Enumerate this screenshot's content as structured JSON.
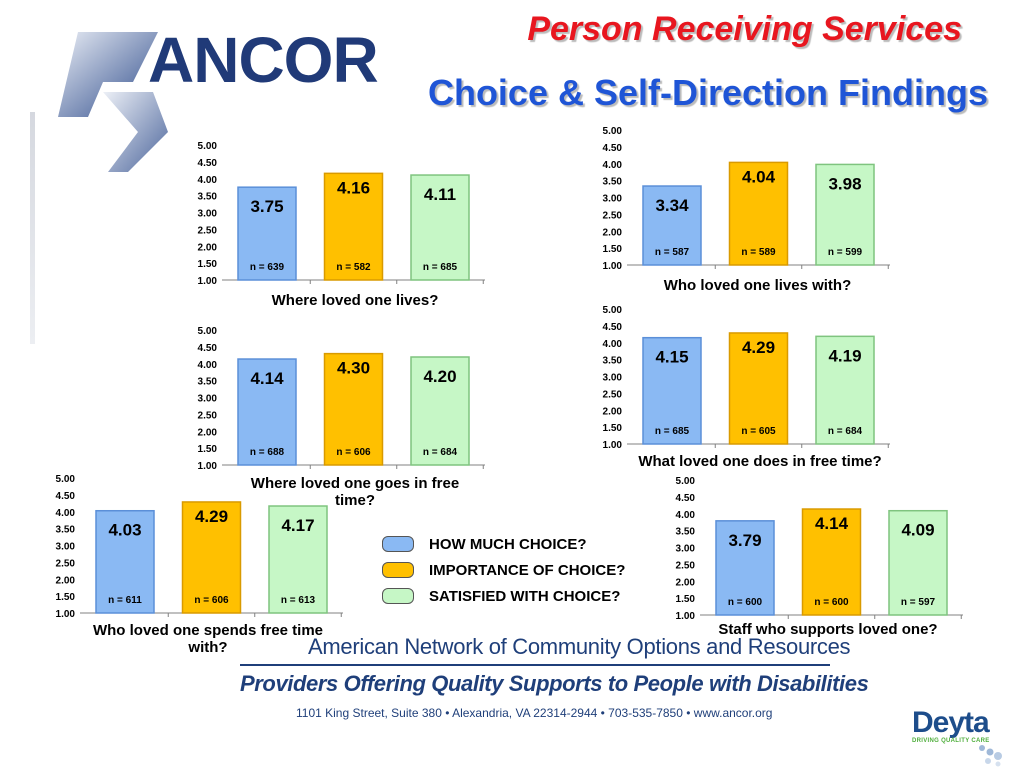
{
  "header": {
    "logo_text": "ANCOR",
    "title": "Person Receiving Services",
    "subtitle": "Choice & Self-Direction Findings"
  },
  "colors": {
    "how_much": "#8ab9f3",
    "importance": "#ffc000",
    "satisfied": "#c6f7c6",
    "title_red": "#e8161f",
    "title_blue": "#1f55d6",
    "brand_navy": "#1f3f7a"
  },
  "legend": {
    "items": [
      {
        "label": "HOW MUCH CHOICE?",
        "color": "#8ab9f3"
      },
      {
        "label": "IMPORTANCE OF CHOICE?",
        "color": "#ffc000"
      },
      {
        "label": "SATISFIED WITH CHOICE?",
        "color": "#c6f7c6"
      }
    ]
  },
  "chart_data": [
    {
      "type": "bar",
      "title": "Where loved one lives?",
      "categories": [
        "HOW MUCH CHOICE?",
        "IMPORTANCE OF CHOICE?",
        "SATISFIED WITH CHOICE?"
      ],
      "values": [
        3.75,
        4.16,
        4.11
      ],
      "value_labels": [
        "3.75",
        "4.16",
        "4.11"
      ],
      "n_labels": [
        "n = 639",
        "n = 582",
        "n = 685"
      ],
      "yticks": [
        "1.00",
        "1.50",
        "2.00",
        "2.50",
        "3.00",
        "3.50",
        "4.00",
        "4.50",
        "5.00"
      ],
      "ylim": [
        1,
        5
      ]
    },
    {
      "type": "bar",
      "title": "Who loved one lives with?",
      "categories": [
        "HOW MUCH CHOICE?",
        "IMPORTANCE OF CHOICE?",
        "SATISFIED WITH CHOICE?"
      ],
      "values": [
        3.34,
        4.04,
        3.98
      ],
      "value_labels": [
        "3.34",
        "4.04",
        "3.98"
      ],
      "n_labels": [
        "n = 587",
        "n = 589",
        "n = 599"
      ],
      "yticks": [
        "1.00",
        "1.50",
        "2.00",
        "2.50",
        "3.00",
        "3.50",
        "4.00",
        "4.50",
        "5.00"
      ],
      "ylim": [
        1,
        5
      ]
    },
    {
      "type": "bar",
      "title": "Where loved one goes in free time?",
      "categories": [
        "HOW MUCH CHOICE?",
        "IMPORTANCE OF CHOICE?",
        "SATISFIED WITH CHOICE?"
      ],
      "values": [
        4.14,
        4.3,
        4.2
      ],
      "value_labels": [
        "4.14",
        "4.30",
        "4.20"
      ],
      "n_labels": [
        "n = 688",
        "n = 606",
        "n = 684"
      ],
      "yticks": [
        "1.00",
        "1.50",
        "2.00",
        "2.50",
        "3.00",
        "3.50",
        "4.00",
        "4.50",
        "5.00"
      ],
      "ylim": [
        1,
        5
      ]
    },
    {
      "type": "bar",
      "title": "What loved one does in free time?",
      "categories": [
        "HOW MUCH CHOICE?",
        "IMPORTANCE OF CHOICE?",
        "SATISFIED WITH CHOICE?"
      ],
      "values": [
        4.15,
        4.29,
        4.19
      ],
      "value_labels": [
        "4.15",
        "4.29",
        "4.19"
      ],
      "n_labels": [
        "n = 685",
        "n = 605",
        "n = 684"
      ],
      "yticks": [
        "1.00",
        "1.50",
        "2.00",
        "2.50",
        "3.00",
        "3.50",
        "4.00",
        "4.50",
        "5.00"
      ],
      "ylim": [
        1,
        5
      ]
    },
    {
      "type": "bar",
      "title": "Who loved one spends free time with?",
      "categories": [
        "HOW MUCH CHOICE?",
        "IMPORTANCE OF CHOICE?",
        "SATISFIED WITH CHOICE?"
      ],
      "values": [
        4.03,
        4.29,
        4.17
      ],
      "value_labels": [
        "4.03",
        "4.29",
        "4.17"
      ],
      "n_labels": [
        "n = 611",
        "n = 606",
        "n = 613"
      ],
      "yticks": [
        "1.00",
        "1.50",
        "2.00",
        "2.50",
        "3.00",
        "3.50",
        "4.00",
        "4.50",
        "5.00"
      ],
      "ylim": [
        1,
        5
      ]
    },
    {
      "type": "bar",
      "title": "Staff who supports loved one?",
      "categories": [
        "HOW MUCH CHOICE?",
        "IMPORTANCE OF CHOICE?",
        "SATISFIED WITH CHOICE?"
      ],
      "values": [
        3.79,
        4.14,
        4.09
      ],
      "value_labels": [
        "3.79",
        "4.14",
        "4.09"
      ],
      "n_labels": [
        "n = 600",
        "n = 600",
        "n = 597"
      ],
      "yticks": [
        "1.00",
        "1.50",
        "2.00",
        "2.50",
        "3.00",
        "3.50",
        "4.00",
        "4.50",
        "5.00"
      ],
      "ylim": [
        1,
        5
      ]
    }
  ],
  "footer": {
    "org_name": "American Network of Community Options and Resources",
    "tagline": "Providers Offering Quality Supports to People with Disabilities",
    "address": "1101 King Street, Suite 380 • Alexandria, VA 22314-2944 • 703-535-7850 • www.ancor.org",
    "partner_name": "Deyta",
    "partner_tagline": "DRIVING QUALITY CARE"
  }
}
